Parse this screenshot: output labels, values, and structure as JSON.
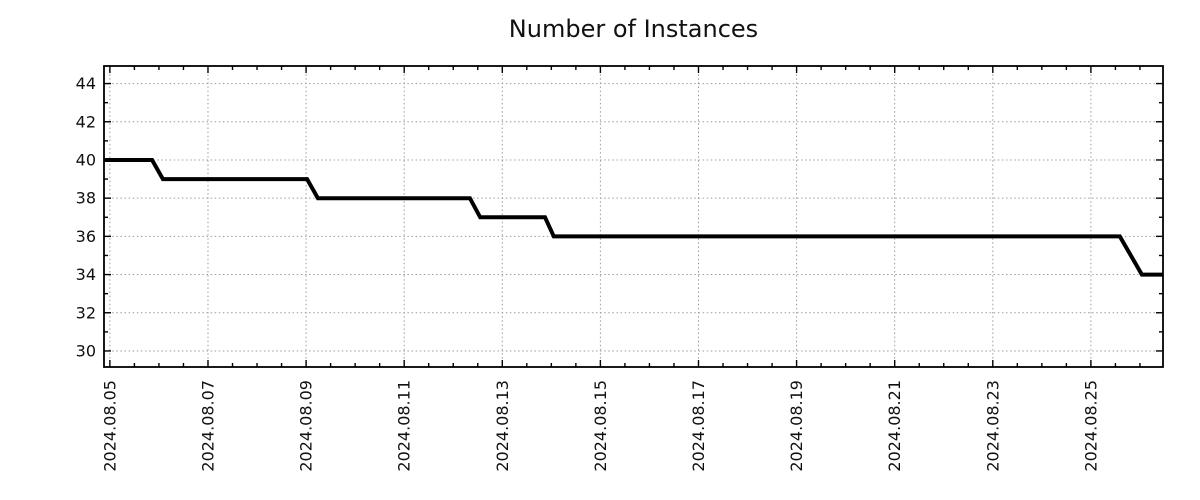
{
  "chart_data": {
    "type": "line",
    "title": "Number of Instances",
    "xlabel": "",
    "ylabel": "",
    "grid": true,
    "legend": null,
    "background_color": "#ffffff",
    "grid_color": "#9c9c9c",
    "x_axis": {
      "origin_note": "x values are days since 2024.08.05 00:00",
      "tick_labels": [
        "2024.08.05",
        "2024.08.07",
        "2024.08.09",
        "2024.08.11",
        "2024.08.13",
        "2024.08.15",
        "2024.08.17",
        "2024.08.19",
        "2024.08.21",
        "2024.08.23",
        "2024.08.25"
      ],
      "tick_days": [
        0,
        2,
        4,
        6,
        8,
        10,
        12,
        14,
        16,
        18,
        20
      ],
      "minor_tick_step_days": 0.5,
      "range_days": [
        -0.12,
        21.47
      ]
    },
    "y_axis": {
      "ticks": [
        30,
        32,
        34,
        36,
        38,
        40,
        42,
        44
      ],
      "minor_tick_step": 1,
      "range": [
        29.16,
        44.92
      ]
    },
    "series": [
      {
        "name": "instances",
        "color": "#000000",
        "points_days_value": [
          [
            -0.12,
            40
          ],
          [
            0.86,
            40
          ],
          [
            1.08,
            39
          ],
          [
            4.02,
            39
          ],
          [
            4.24,
            38
          ],
          [
            7.34,
            38
          ],
          [
            7.55,
            37
          ],
          [
            8.87,
            37
          ],
          [
            9.05,
            36
          ],
          [
            20.59,
            36
          ],
          [
            21.04,
            34
          ],
          [
            21.47,
            34
          ]
        ]
      }
    ]
  }
}
